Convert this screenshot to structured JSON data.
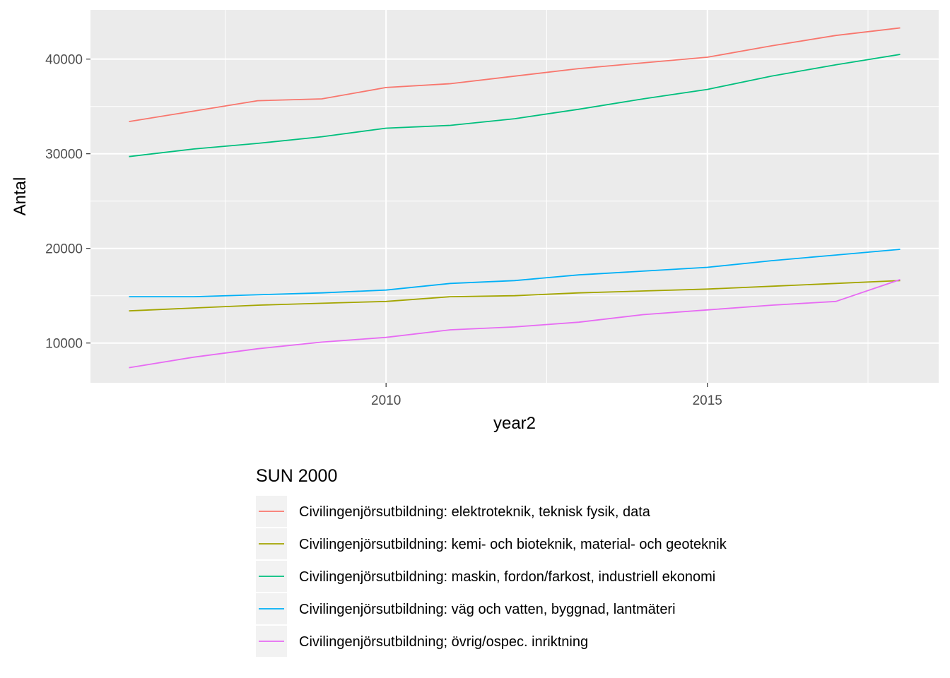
{
  "chart_data": {
    "type": "line",
    "xlabel": "year2",
    "ylabel": "Antal",
    "xlim": [
      2005.4,
      2018.6
    ],
    "ylim": [
      5800,
      45200
    ],
    "x_ticks": [
      2010,
      2015
    ],
    "x_minor": [
      2007.5,
      2012.5,
      2017.5
    ],
    "y_ticks": [
      10000,
      20000,
      30000,
      40000
    ],
    "y_minor": [
      15000,
      25000,
      35000
    ],
    "x": [
      2006,
      2007,
      2008,
      2009,
      2010,
      2011,
      2012,
      2013,
      2014,
      2015,
      2016,
      2017,
      2018
    ],
    "grid": true,
    "legend_position": "bottom",
    "legend_title": "SUN 2000",
    "series": [
      {
        "name": "Civilingenjörsutbildning: elektroteknik, teknisk fysik, data",
        "color": "#F8766D",
        "values": [
          33400,
          34500,
          35600,
          35800,
          37000,
          37400,
          38200,
          39000,
          39600,
          40200,
          41400,
          42500,
          43300
        ]
      },
      {
        "name": "Civilingenjörsutbildning: kemi- och bioteknik, material- och geoteknik",
        "color": "#A3A500",
        "values": [
          13400,
          13700,
          14000,
          14200,
          14400,
          14900,
          15000,
          15300,
          15500,
          15700,
          16000,
          16300,
          16600
        ]
      },
      {
        "name": "Civilingenjörsutbildning: maskin, fordon/farkost, industriell ekonomi",
        "color": "#00BF7D",
        "values": [
          29700,
          30500,
          31100,
          31800,
          32700,
          33000,
          33700,
          34700,
          35800,
          36800,
          38200,
          39400,
          40500
        ]
      },
      {
        "name": "Civilingenjörsutbildning: väg och vatten, byggnad, lantmäteri",
        "color": "#00B0F6",
        "values": [
          14900,
          14900,
          15100,
          15300,
          15600,
          16300,
          16600,
          17200,
          17600,
          18000,
          18700,
          19300,
          19900
        ]
      },
      {
        "name": "Civilingenjörsutbildning; övrig/ospec. inriktning",
        "color": "#E76BF3",
        "values": [
          7400,
          8500,
          9400,
          10100,
          10600,
          11400,
          11700,
          12200,
          13000,
          13500,
          14000,
          14400,
          16700
        ]
      }
    ]
  }
}
